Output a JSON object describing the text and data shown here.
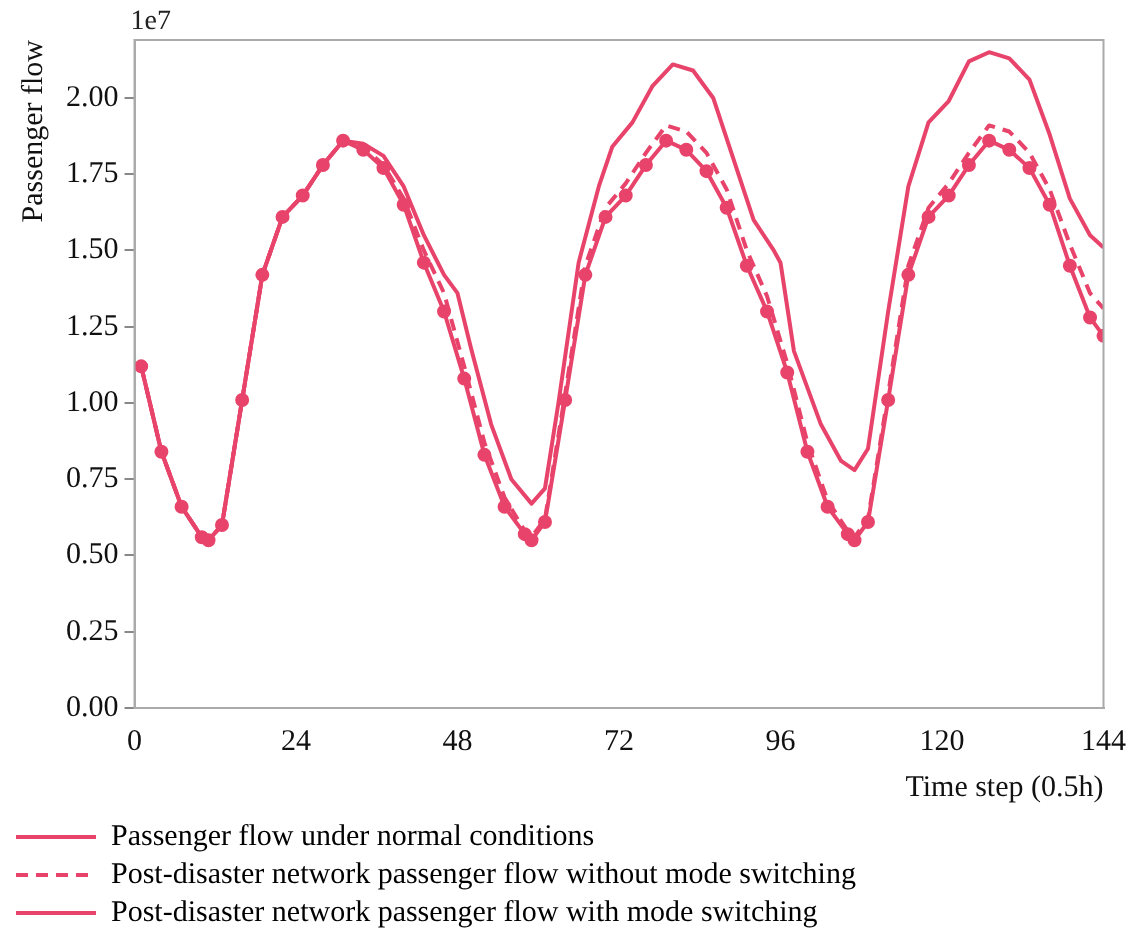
{
  "chart_data": {
    "type": "line",
    "xlabel": "Time step (0.5h)",
    "ylabel": "Passenger flow",
    "annotations": [
      "1e7"
    ],
    "xlim": [
      0,
      144
    ],
    "xticks": [
      0,
      24,
      48,
      72,
      96,
      120,
      144
    ],
    "ylim": [
      0,
      2.19
    ],
    "yticks": [
      {
        "value": 0,
        "label": "0.00"
      },
      {
        "value": 0.25,
        "label": "0.25"
      },
      {
        "value": 0.5,
        "label": "0.50"
      },
      {
        "value": 0.75,
        "label": "0.75"
      },
      {
        "value": 1,
        "label": "1.00"
      },
      {
        "value": 1.25,
        "label": "1.25"
      },
      {
        "value": 1.5,
        "label": "1.50"
      },
      {
        "value": 1.75,
        "label": "1.75"
      },
      {
        "value": 2,
        "label": "2.00"
      }
    ],
    "grid": false,
    "legend": "bottom left",
    "series": [
      {
        "name": "Passenger flow under normal conditions",
        "color": "#e8436a",
        "marker": "circle",
        "line_style": "solid",
        "x": [
          1,
          4,
          7,
          10,
          11,
          13,
          16,
          19,
          22,
          25,
          28,
          31,
          34,
          37,
          40,
          43,
          46,
          49,
          52,
          55,
          58,
          59,
          61,
          64,
          67,
          70,
          73,
          76,
          79,
          82,
          85,
          88,
          91,
          94,
          97,
          100,
          103,
          106,
          107,
          109,
          112,
          115,
          118,
          121,
          124,
          127,
          130,
          133,
          136,
          139,
          142,
          144
        ],
        "values": [
          1.12,
          0.84,
          0.66,
          0.56,
          0.55,
          0.6,
          1.01,
          1.42,
          1.61,
          1.68,
          1.78,
          1.86,
          1.83,
          1.77,
          1.65,
          1.46,
          1.3,
          1.08,
          0.83,
          0.66,
          0.57,
          0.55,
          0.61,
          1.01,
          1.42,
          1.61,
          1.68,
          1.78,
          1.86,
          1.83,
          1.76,
          1.64,
          1.45,
          1.3,
          1.1,
          0.84,
          0.66,
          0.57,
          0.55,
          0.61,
          1.01,
          1.42,
          1.61,
          1.68,
          1.78,
          1.86,
          1.83,
          1.77,
          1.65,
          1.45,
          1.28,
          1.22
        ]
      },
      {
        "name": "Post-disaster network passenger flow without mode switching",
        "color": "#e8436a",
        "marker": "none",
        "line_style": "dashed",
        "x": [
          1,
          4,
          7,
          10,
          11,
          13,
          16,
          19,
          22,
          25,
          28,
          31,
          34,
          37,
          40,
          43,
          46,
          49,
          52,
          55,
          58,
          59,
          61,
          64,
          67,
          70,
          73,
          76,
          79,
          82,
          85,
          88,
          91,
          94,
          97,
          100,
          103,
          106,
          107,
          109,
          112,
          115,
          118,
          121,
          124,
          127,
          130,
          133,
          136,
          139,
          142,
          144
        ],
        "values": [
          1.12,
          0.84,
          0.66,
          0.56,
          0.55,
          0.6,
          1.01,
          1.42,
          1.61,
          1.68,
          1.78,
          1.86,
          1.84,
          1.78,
          1.67,
          1.5,
          1.36,
          1.12,
          0.87,
          0.69,
          0.58,
          0.56,
          0.62,
          1.03,
          1.45,
          1.64,
          1.72,
          1.82,
          1.91,
          1.89,
          1.82,
          1.7,
          1.5,
          1.35,
          1.13,
          0.87,
          0.68,
          0.58,
          0.56,
          0.62,
          1.03,
          1.45,
          1.64,
          1.72,
          1.82,
          1.91,
          1.89,
          1.82,
          1.7,
          1.52,
          1.36,
          1.31
        ]
      },
      {
        "name": "Post-disaster network passenger flow with mode switching",
        "color": "#e8436a",
        "marker": "none",
        "line_style": "solid",
        "x": [
          1,
          4,
          7,
          10,
          11,
          13,
          16,
          19,
          22,
          25,
          28,
          31,
          34,
          37,
          40,
          43,
          46,
          48,
          50,
          53,
          56,
          59,
          61,
          63,
          66,
          69,
          71,
          74,
          77,
          80,
          83,
          86,
          89,
          92,
          95,
          96,
          98,
          102,
          105,
          107,
          109,
          112,
          115,
          118,
          121,
          124,
          127,
          130,
          133,
          136,
          139,
          142,
          144
        ],
        "values": [
          1.12,
          0.84,
          0.66,
          0.56,
          0.55,
          0.6,
          1.01,
          1.42,
          1.61,
          1.68,
          1.78,
          1.86,
          1.85,
          1.81,
          1.71,
          1.55,
          1.42,
          1.36,
          1.18,
          0.93,
          0.75,
          0.67,
          0.72,
          1.0,
          1.46,
          1.71,
          1.84,
          1.92,
          2.04,
          2.11,
          2.09,
          2.0,
          1.8,
          1.6,
          1.5,
          1.46,
          1.17,
          0.93,
          0.81,
          0.78,
          0.85,
          1.3,
          1.71,
          1.92,
          1.99,
          2.12,
          2.15,
          2.13,
          2.06,
          1.88,
          1.67,
          1.55,
          1.51
        ]
      }
    ]
  }
}
